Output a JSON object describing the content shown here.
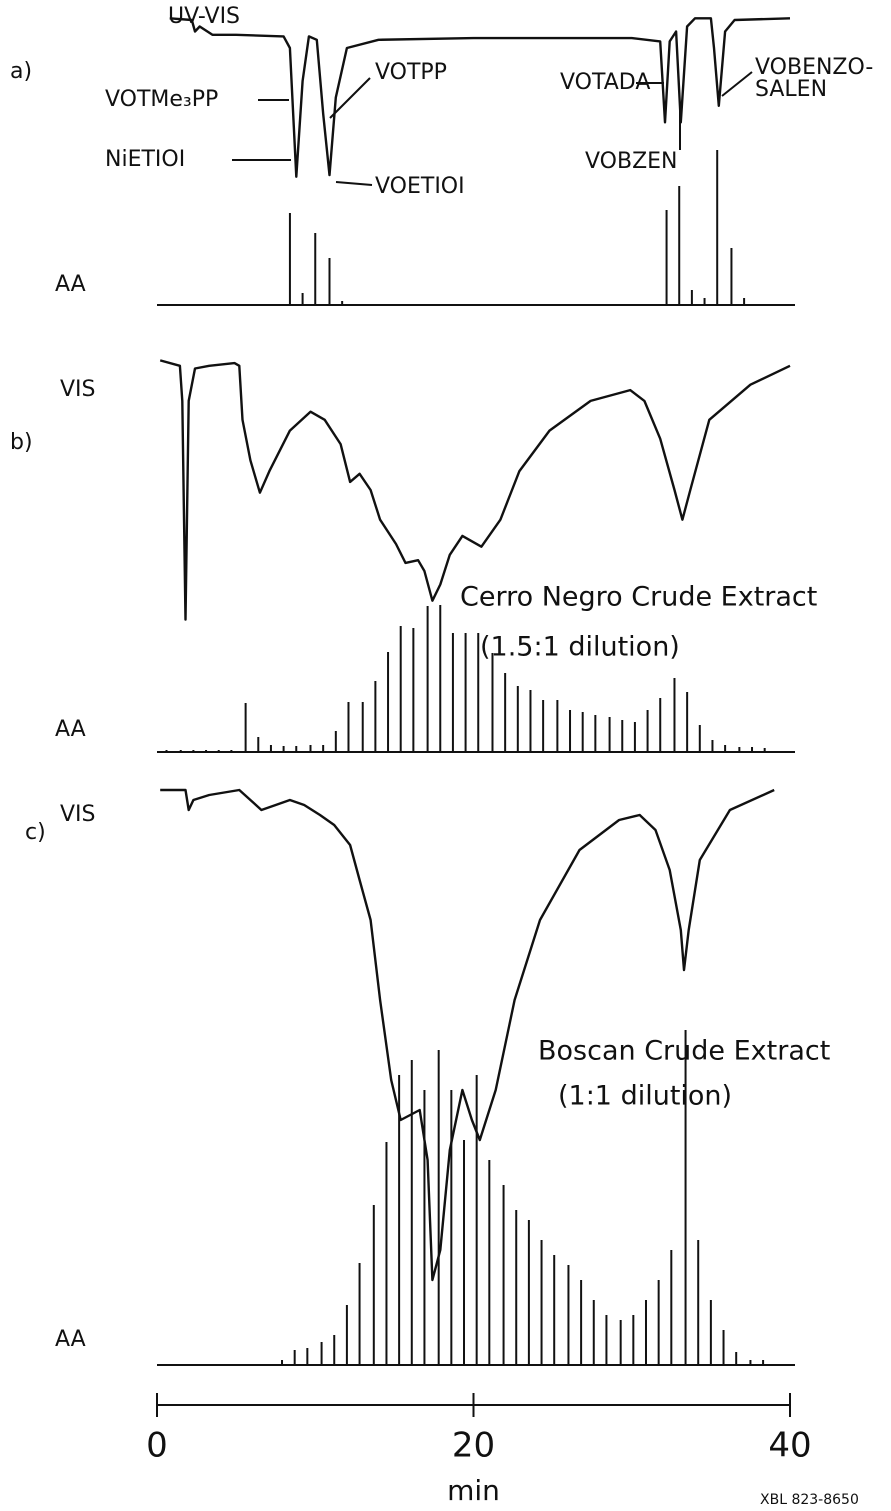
{
  "chart_data": [
    {
      "type": "line",
      "label": "a)",
      "xlim": [
        0,
        40
      ],
      "annotations": [
        "VOTMe₃PP",
        "NiETIOI",
        "VOTPP",
        "VOETIOI",
        "VOTADA",
        "VOBZEN",
        "VOBENZO-",
        "SALEN"
      ],
      "series": [
        {
          "name": "UV-VIS",
          "style": "line",
          "x": [
            0.8,
            2.2,
            2.4,
            2.7,
            3.5,
            5,
            8,
            8.4,
            8.8,
            9.2,
            9.6,
            10.1,
            10.5,
            10.9,
            11.3,
            12,
            14,
            20,
            30,
            31.8,
            32.1,
            32.4,
            32.8,
            33.1,
            33.5,
            34,
            35,
            35.2,
            35.5,
            35.9,
            36.5,
            40
          ],
          "values": [
            98,
            97,
            90,
            93,
            88,
            88,
            87,
            80,
            2,
            60,
            87,
            85,
            40,
            3,
            50,
            80,
            85,
            86,
            86,
            84,
            35,
            84,
            90,
            35,
            93,
            98,
            98,
            80,
            45,
            90,
            97,
            98
          ]
        },
        {
          "name": "AA",
          "style": "stem",
          "x": [
            8.4,
            9.2,
            10.0,
            10.9,
            11.7,
            32.2,
            33.0,
            33.8,
            34.6,
            35.4,
            36.3,
            37.1
          ],
          "values": [
            92,
            12,
            72,
            47,
            4,
            95,
            119,
            15,
            7,
            155,
            57,
            7
          ]
        }
      ]
    },
    {
      "type": "line",
      "label": "b)",
      "xlim": [
        0,
        40
      ],
      "annotations": [
        "Cerro Negro Crude Extract",
        "(1.5:1 dilution)"
      ],
      "series": [
        {
          "name": "VIS",
          "style": "line",
          "x": [
            0.2,
            1.45,
            1.6,
            1.8,
            2.0,
            2.4,
            3.3,
            4.9,
            5.2,
            5.4,
            5.9,
            6.5,
            7.1,
            8.4,
            9.7,
            10.6,
            11.6,
            12.2,
            12.8,
            13.5,
            14.1,
            15.1,
            15.7,
            16.5,
            16.9,
            17.4,
            17.9,
            18.5,
            19.3,
            19.9,
            20.5,
            21.7,
            22.9,
            24.8,
            27.4,
            29.9,
            30.8,
            31.8,
            32.7,
            33.2,
            33.7,
            34.9,
            37.5,
            40
          ],
          "values": [
            98,
            96,
            83,
            2,
            83,
            95,
            96,
            97,
            96,
            76,
            61,
            49,
            57,
            72,
            79,
            76,
            67,
            53,
            56,
            50,
            39,
            30,
            23,
            24,
            20,
            9,
            15,
            26,
            33,
            31,
            29,
            39,
            57,
            72,
            83,
            87,
            83,
            69,
            50,
            39,
            50,
            76,
            89,
            96
          ]
        },
        {
          "name": "AA",
          "style": "stem",
          "x": [
            0.6,
            1.5,
            2.3,
            3.1,
            3.9,
            4.7,
            5.6,
            6.4,
            7.2,
            8.0,
            8.8,
            9.7,
            10.5,
            11.3,
            12.1,
            13.0,
            13.8,
            14.6,
            15.4,
            16.2,
            17.1,
            17.9,
            18.7,
            19.5,
            20.3,
            21.2,
            22.0,
            22.8,
            23.6,
            24.4,
            25.3,
            26.1,
            26.9,
            27.7,
            28.6,
            29.4,
            30.2,
            31.0,
            31.8,
            32.7,
            33.5,
            34.3,
            35.1,
            35.9,
            36.8,
            37.6,
            38.4
          ],
          "values": [
            2,
            2,
            2,
            2,
            2,
            2,
            49,
            15,
            7,
            6,
            6,
            7,
            7,
            21,
            50,
            50,
            71,
            100,
            126,
            124,
            146,
            147,
            119,
            119,
            119,
            99,
            79,
            66,
            62,
            52,
            52,
            42,
            40,
            37,
            35,
            32,
            30,
            42,
            54,
            74,
            60,
            27,
            12,
            7,
            5,
            5,
            4
          ]
        }
      ]
    },
    {
      "type": "line",
      "label": "c)",
      "xlim": [
        0,
        40
      ],
      "xticks": [
        0,
        20,
        40
      ],
      "xlabel": "min",
      "annotations": [
        "Boscan Crude Extract",
        "(1:1 dilution)"
      ],
      "series": [
        {
          "name": "VIS",
          "style": "line",
          "x": [
            0.2,
            1.8,
            2.0,
            2.3,
            3.3,
            5.2,
            5.9,
            6.6,
            7.5,
            8.4,
            9.3,
            10.3,
            11.2,
            12.2,
            12.8,
            13.5,
            14.1,
            14.8,
            15.4,
            16.0,
            16.6,
            17.1,
            17.4,
            17.9,
            18.5,
            19.3,
            19.9,
            20.4,
            21.4,
            22.6,
            24.2,
            26.7,
            29.2,
            30.5,
            31.5,
            32.4,
            33.1,
            33.3,
            33.6,
            34.3,
            36.2,
            39.0
          ],
          "values": [
            99,
            99,
            95,
            97,
            98,
            99,
            97,
            95,
            96,
            97,
            96,
            94,
            92,
            88,
            81,
            73,
            57,
            41,
            33,
            34,
            35,
            25,
            1,
            7,
            27,
            39,
            33,
            29,
            39,
            57,
            73,
            87,
            93,
            94,
            91,
            83,
            71,
            63,
            71,
            85,
            95,
            99
          ]
        },
        {
          "name": "AA",
          "style": "stem",
          "x": [
            7.9,
            8.7,
            9.5,
            10.4,
            11.2,
            12.0,
            12.8,
            13.7,
            14.5,
            15.3,
            16.1,
            16.9,
            17.8,
            18.6,
            19.4,
            20.2,
            21.0,
            21.9,
            22.7,
            23.5,
            24.3,
            25.1,
            26.0,
            26.8,
            27.6,
            28.4,
            29.3,
            30.1,
            30.9,
            31.7,
            32.5,
            33.4,
            34.2,
            35.0,
            35.8,
            36.6,
            37.5,
            38.3
          ],
          "values": [
            5,
            15,
            17,
            23,
            30,
            60,
            102,
            160,
            223,
            290,
            305,
            275,
            315,
            275,
            225,
            290,
            205,
            180,
            155,
            145,
            125,
            110,
            100,
            85,
            65,
            50,
            45,
            50,
            65,
            85,
            115,
            335,
            125,
            65,
            35,
            13,
            5,
            5
          ]
        }
      ]
    }
  ],
  "footer": "XBL 823-8650"
}
